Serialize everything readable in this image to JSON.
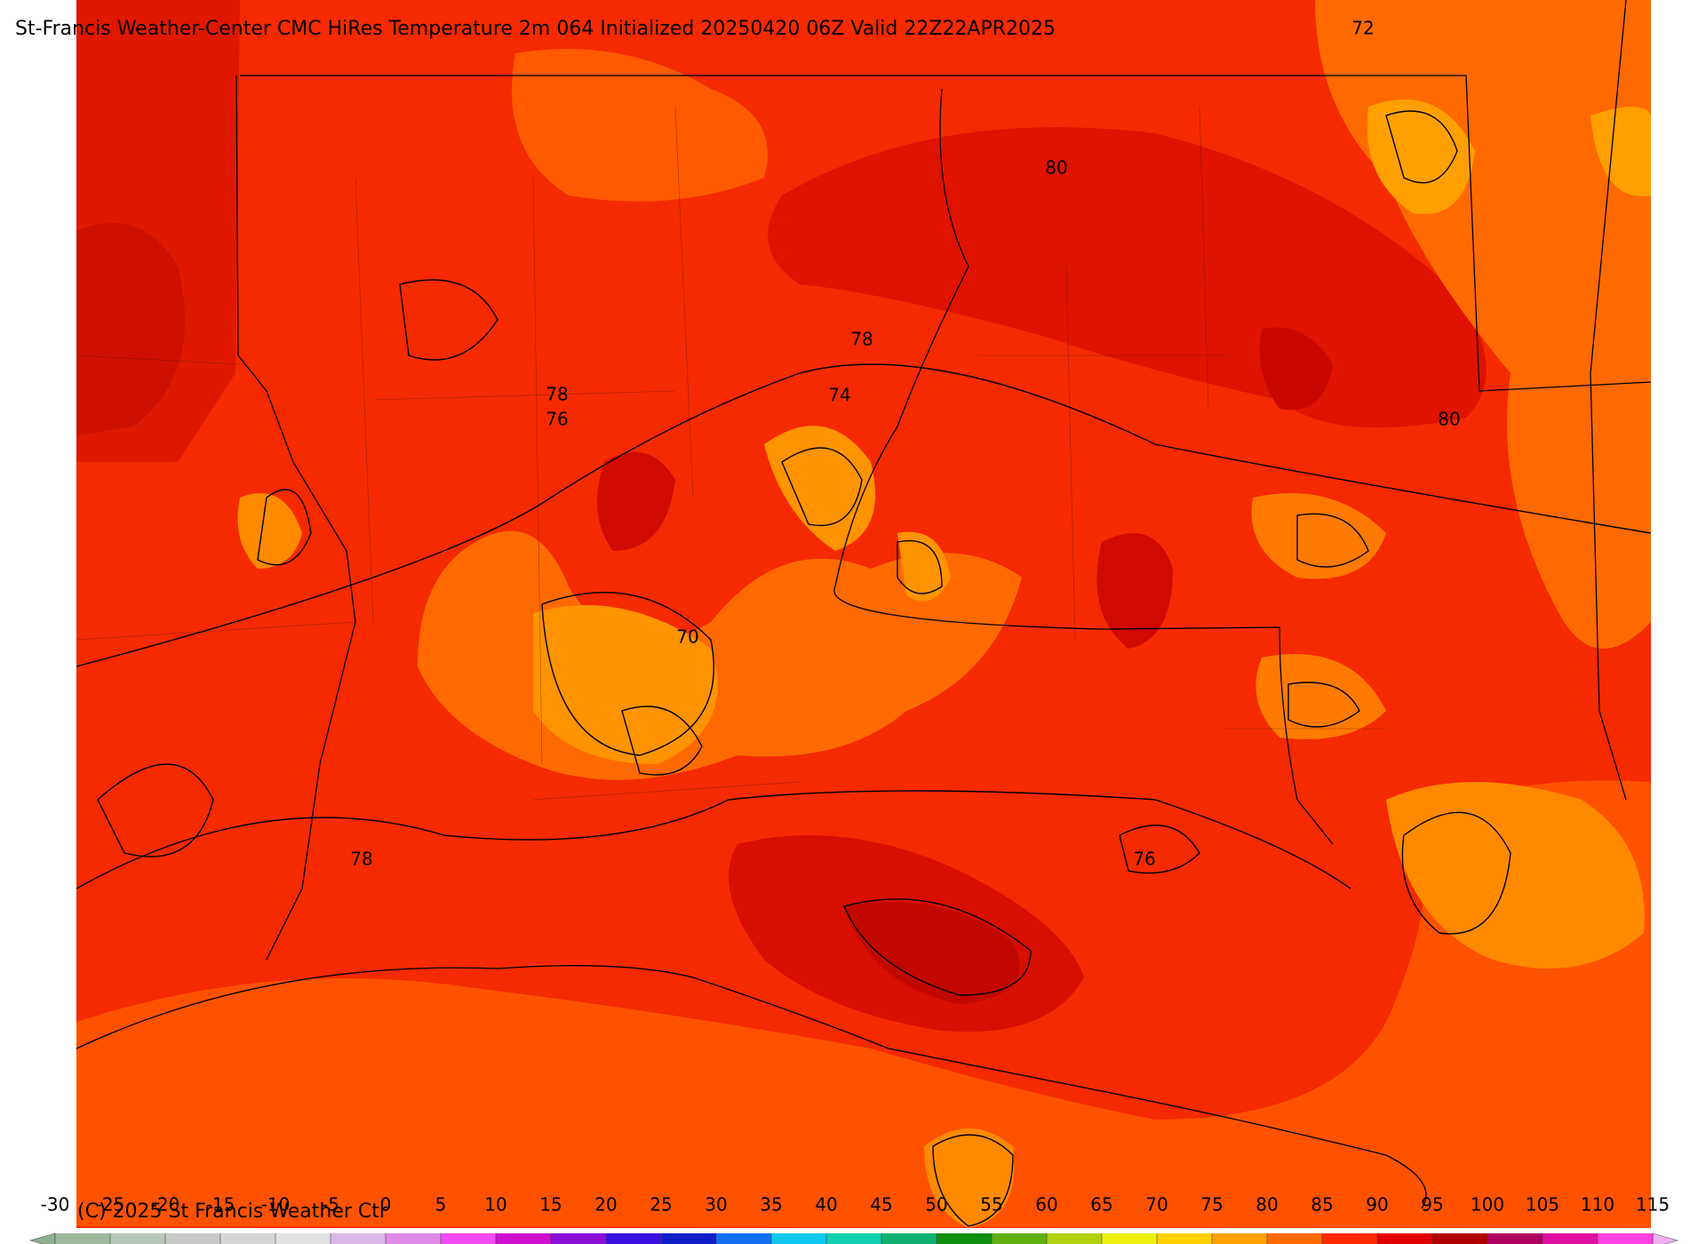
{
  "header": {
    "title": "St-Francis Weather-Center CMC HiRes Temperature 2m  064 Initialized 20250420 06Z Valid 22Z22APR2025"
  },
  "map": {
    "contour_labels": [
      "72",
      "80",
      "78",
      "78",
      "76",
      "74",
      "80",
      "70",
      "78",
      "76"
    ]
  },
  "colorbar": {
    "ticks": [
      -30,
      -25,
      -20,
      -15,
      -10,
      -5,
      0,
      5,
      10,
      15,
      20,
      25,
      30,
      35,
      40,
      45,
      50,
      55,
      60,
      65,
      70,
      75,
      80,
      85,
      90,
      95,
      100,
      105,
      110,
      115
    ],
    "colors": [
      "#9db89d",
      "#b7c7b7",
      "#c8c8c8",
      "#d6d6d6",
      "#e2e2e2",
      "#d8b8e8",
      "#e08ae8",
      "#f04af0",
      "#d010d0",
      "#8a10d8",
      "#3a10e0",
      "#1020c8",
      "#1070f0",
      "#10c8f0",
      "#10d0b0",
      "#10b070",
      "#108f10",
      "#60b010",
      "#b0d010",
      "#f0f010",
      "#ffd000",
      "#ffa000",
      "#ff6a00",
      "#ff2a00",
      "#e00000",
      "#b00000",
      "#b00060",
      "#e010a0",
      "#ff40e0"
    ],
    "under_color": "#8fb08f",
    "over_color": "#f0b0f0"
  },
  "footer": {
    "copyright": "(C) 2025 St Francis Weather Ctr"
  }
}
